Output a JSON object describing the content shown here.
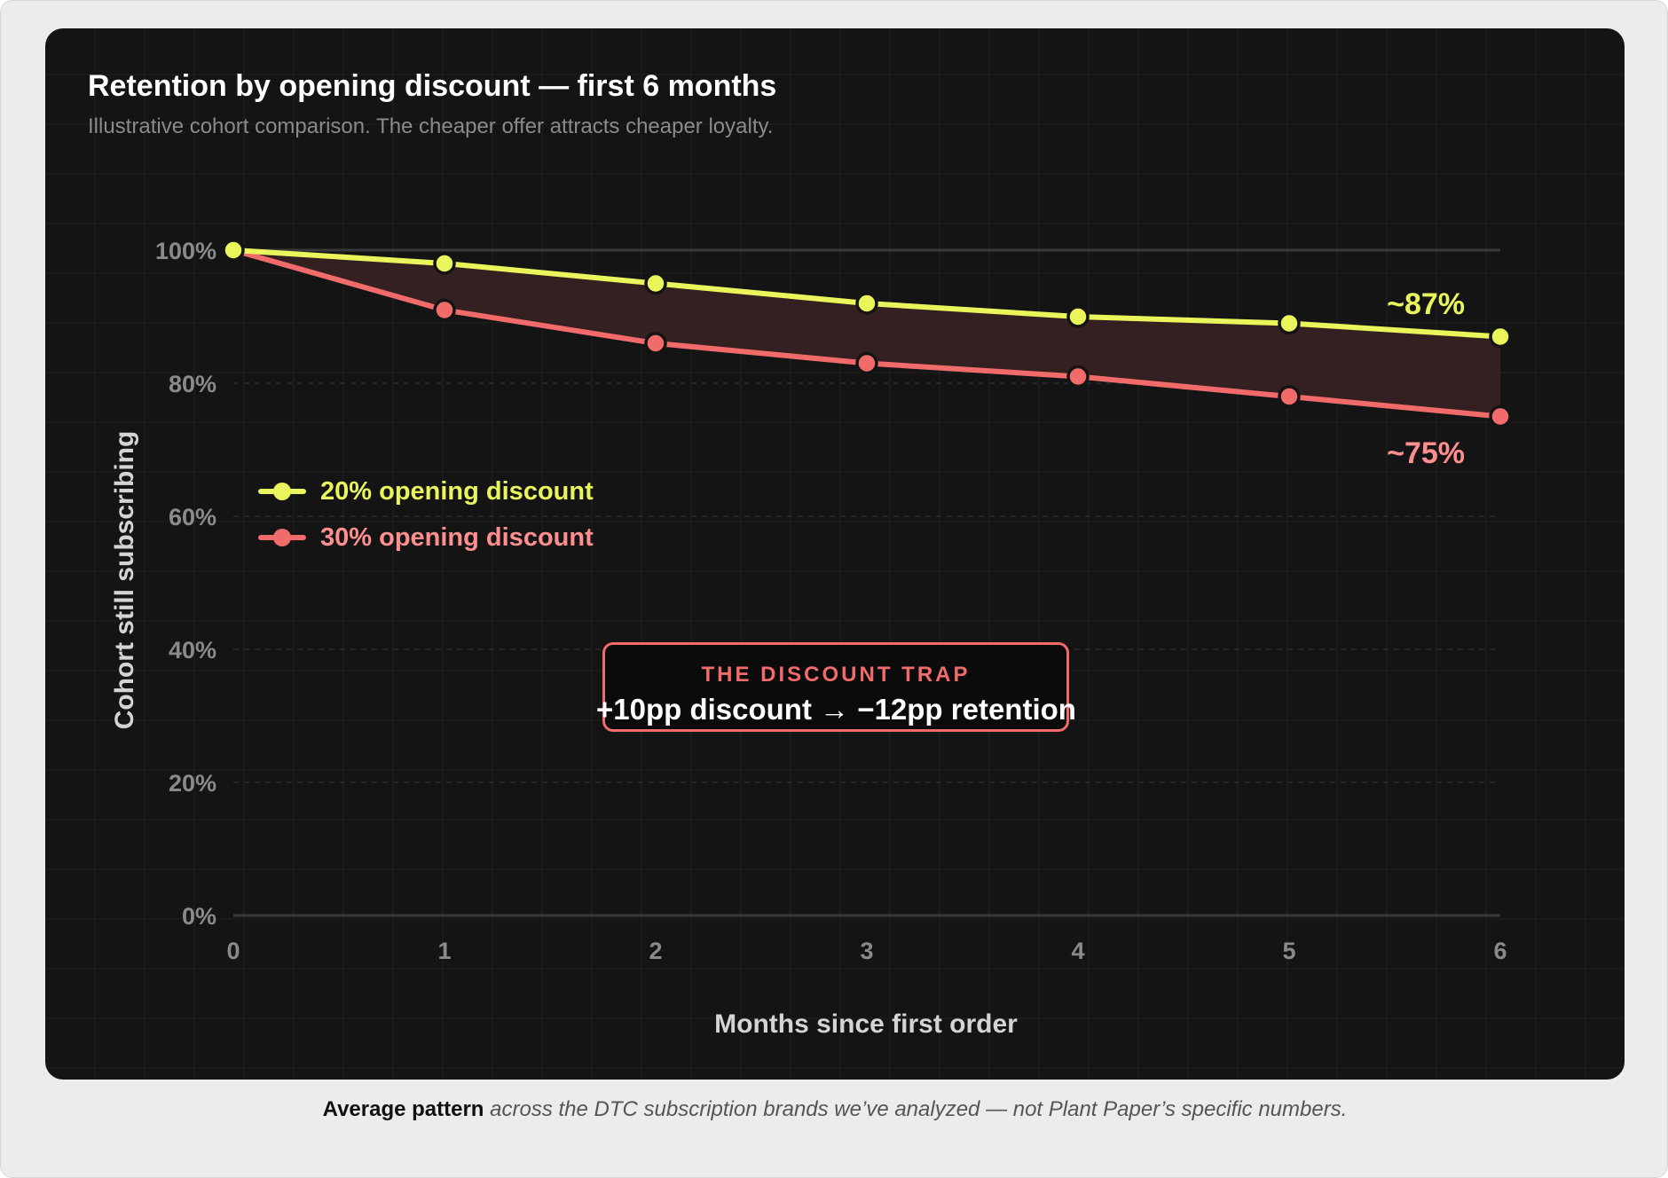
{
  "colors": {
    "background": "#ececec",
    "panel": "#141414",
    "series_20": "#eaf55c",
    "series_30": "#f26b6b",
    "gap_fill": "#3a2222",
    "text_muted": "#8a8a8a",
    "callout_border": "#f26b6b"
  },
  "chart_data": {
    "type": "line",
    "title": "Retention by opening discount — first 6 months",
    "subtitle": "Illustrative cohort comparison. The cheaper offer attracts cheaper loyalty.",
    "xlabel": "Months since first order",
    "ylabel": "Cohort still subscribing",
    "x": [
      0,
      1,
      2,
      3,
      4,
      5,
      6
    ],
    "x_tick_labels": [
      "0",
      "1",
      "2",
      "3",
      "4",
      "5",
      "6"
    ],
    "y_tick_values": [
      0,
      20,
      40,
      60,
      80,
      100
    ],
    "y_tick_labels": [
      "0%",
      "20%",
      "40%",
      "60%",
      "80%",
      "100%"
    ],
    "xlim": [
      0,
      6
    ],
    "ylim": [
      0,
      100
    ],
    "grid": true,
    "legend_position": "upper-left",
    "series": [
      {
        "name": "20% opening discount",
        "color": "#eaf55c",
        "values": [
          100,
          98,
          95,
          92,
          90,
          89,
          87
        ],
        "end_label": "~87%"
      },
      {
        "name": "30% opening discount",
        "color": "#f26b6b",
        "values": [
          100,
          91,
          86,
          83,
          81,
          78,
          75
        ],
        "end_label": "~75%"
      }
    ],
    "shaded_between_series": true,
    "annotation": {
      "kicker": "THE DISCOUNT TRAP",
      "text": "+10pp discount → −12pp retention"
    }
  },
  "footnote": {
    "bold": "Average pattern",
    "italic": "across the DTC subscription brands we’ve analyzed — not Plant Paper’s specific numbers."
  }
}
